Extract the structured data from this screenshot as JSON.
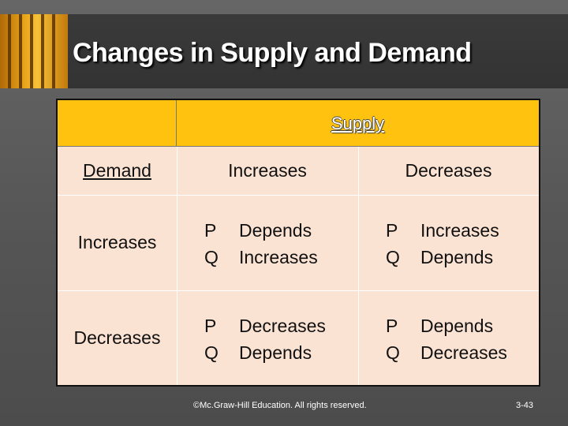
{
  "slide": {
    "title": "Changes in Supply and Demand"
  },
  "table": {
    "supply_header": "Supply",
    "demand_header": "Demand",
    "column_labels": [
      "Increases",
      "Decreases"
    ],
    "rows": [
      {
        "label": "Increases",
        "cells": [
          {
            "p_key": "P",
            "p_value": "Depends",
            "q_key": "Q",
            "q_value": "Increases"
          },
          {
            "p_key": "P",
            "p_value": "Increases",
            "q_key": "Q",
            "q_value": "Depends"
          }
        ]
      },
      {
        "label": "Decreases",
        "cells": [
          {
            "p_key": "P",
            "p_value": "Decreases",
            "q_key": "Q",
            "q_value": "Depends"
          },
          {
            "p_key": "P",
            "p_value": "Depends",
            "q_key": "Q",
            "q_value": "Decreases"
          }
        ]
      }
    ]
  },
  "footer": {
    "copyright": "©Mc.Graw-Hill Education. All rights reserved.",
    "page_number": "3-43"
  },
  "colors": {
    "header_fill": "#ffc20e",
    "body_fill": "#fbe3d4",
    "background": "#595959"
  }
}
